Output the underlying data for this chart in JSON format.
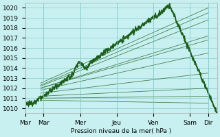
{
  "background_color": "#c8f0f0",
  "grid_color": "#88cccc",
  "line_color_dark": "#1a5c1a",
  "line_color_mid": "#2d7a2d",
  "line_color_light": "#3a9c3a",
  "xlabel": "Pression niveau de la mer( hPa )",
  "xlabels": [
    "Mar",
    "Mar",
    "Mer",
    "Jeu",
    "Ven",
    "Sam",
    "Dir"
  ],
  "xtick_positions": [
    0,
    12,
    36,
    60,
    84,
    108,
    120
  ],
  "ylim": [
    1009.5,
    1020.5
  ],
  "yticks": [
    1010,
    1011,
    1012,
    1013,
    1014,
    1015,
    1016,
    1017,
    1018,
    1019,
    1020
  ],
  "xlim": [
    0,
    126
  ],
  "forecast_lines": [
    [
      10,
      1012.5,
      120,
      1020.0
    ],
    [
      10,
      1012.3,
      120,
      1019.5
    ],
    [
      10,
      1012.2,
      120,
      1018.8
    ],
    [
      10,
      1012.0,
      120,
      1017.2
    ],
    [
      10,
      1012.0,
      120,
      1016.8
    ],
    [
      10,
      1011.8,
      120,
      1015.5
    ],
    [
      10,
      1011.5,
      120,
      1013.5
    ],
    [
      10,
      1011.2,
      120,
      1012.0
    ],
    [
      10,
      1011.0,
      120,
      1011.2
    ],
    [
      10,
      1010.8,
      120,
      1010.5
    ]
  ],
  "observed_offsets": [
    -0.1,
    0.0,
    0.05,
    0.1,
    -0.05
  ]
}
